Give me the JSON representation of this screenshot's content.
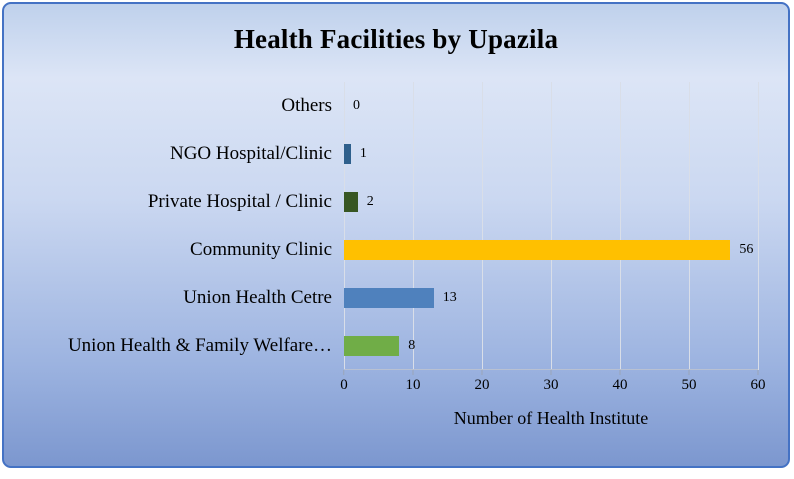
{
  "title": "Health Facilities by Upazila",
  "chart_data": {
    "type": "bar",
    "orientation": "horizontal",
    "title": "Health Facilities by Upazila",
    "categories": [
      "Others",
      "NGO Hospital/Clinic",
      "Private Hospital / Clinic",
      "Community Clinic",
      "Union Health Cetre",
      "Union Health & Family Welfare…"
    ],
    "values": [
      0,
      1,
      2,
      56,
      13,
      8
    ],
    "bar_colors": [
      "#4472C4",
      "#2E5F8C",
      "#375623",
      "#FFC000",
      "#4F81BD",
      "#70AD47"
    ],
    "data_labels": [
      "0",
      "1",
      "2",
      "56",
      "13",
      "8"
    ],
    "xlabel": "Number of Health Institute",
    "ylabel": "",
    "xlim": [
      0,
      60
    ],
    "xticks": [
      0,
      10,
      20,
      30,
      40,
      50,
      60
    ],
    "grid": true,
    "legend": false
  },
  "style": {
    "border_color": "#4472C4",
    "gridline_color": "#D9DEE8",
    "background_top": "#BFD1EC",
    "background_bottom": "#7C97CF"
  }
}
